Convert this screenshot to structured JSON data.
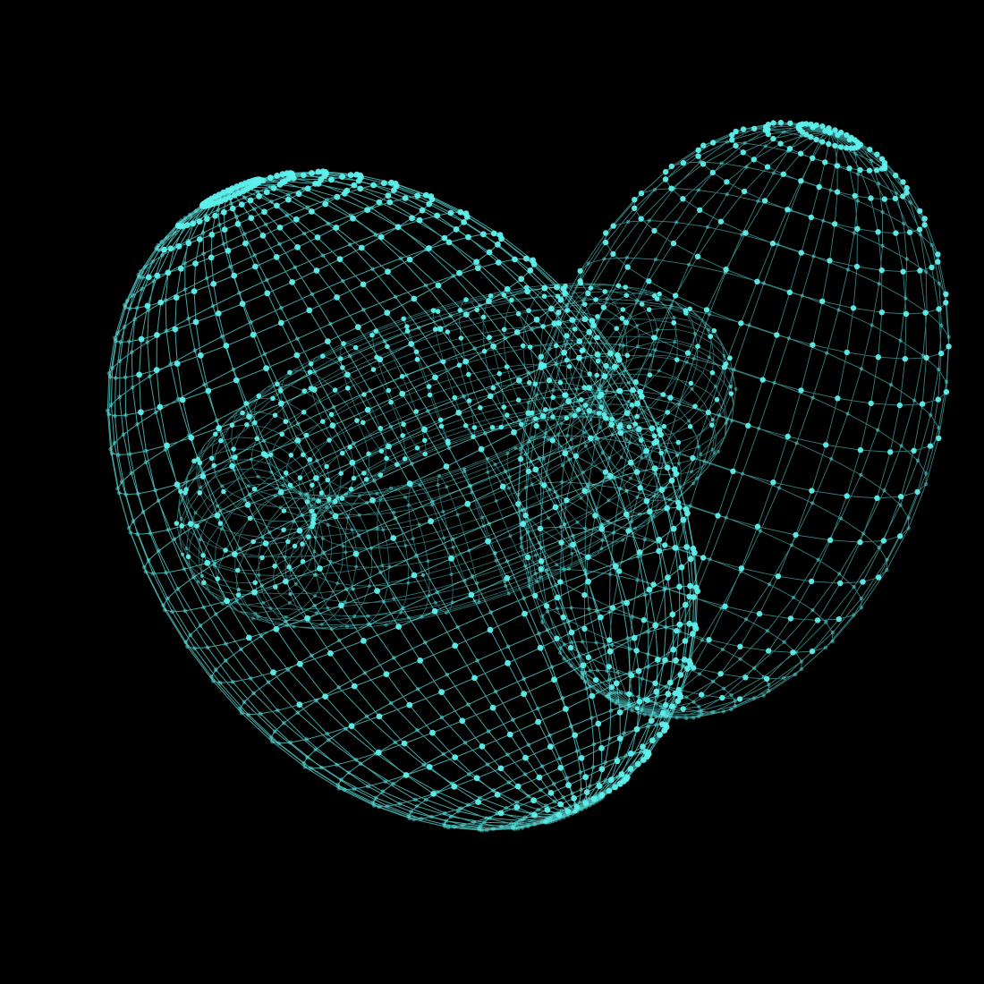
{
  "scene": {
    "background_color": "#000000",
    "wire_color": "#5ee8e4",
    "node_color": "#5ef0ec",
    "description_kind": "wireframe-point-cloud",
    "shapes": [
      {
        "name": "outer-ellipsoid",
        "type": "ellipsoid"
      },
      {
        "name": "inner-torus",
        "type": "torus"
      },
      {
        "name": "right-bulb",
        "type": "ellipsoid"
      }
    ]
  }
}
